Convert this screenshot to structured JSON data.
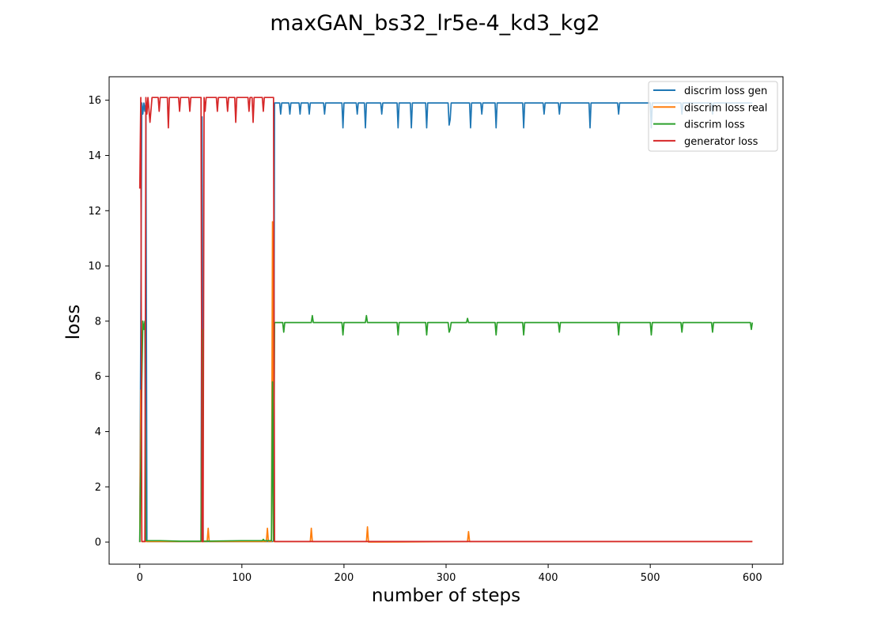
{
  "chart_data": {
    "type": "line",
    "title": "maxGAN_bs32_lr5e-4_kd3_kg2",
    "xlabel": "number of steps",
    "ylabel": "loss",
    "xlim": [
      -30,
      630
    ],
    "ylim": [
      -0.8,
      16.85
    ],
    "xticks": [
      0,
      100,
      200,
      300,
      400,
      500,
      600
    ],
    "yticks": [
      0,
      2,
      4,
      6,
      8,
      10,
      12,
      14,
      16
    ],
    "grid": false,
    "legend_position": "top-right",
    "series": [
      {
        "name": "discrim loss gen",
        "color": "#1f77b4",
        "points": [
          [
            0,
            0.0
          ],
          [
            2,
            15.9
          ],
          [
            3,
            15.5
          ],
          [
            4,
            15.9
          ],
          [
            5,
            15.6
          ],
          [
            6,
            15.9
          ],
          [
            7,
            0.02
          ],
          [
            60,
            0.02
          ],
          [
            61,
            15.4
          ],
          [
            62,
            0.02
          ],
          [
            130,
            0.02
          ],
          [
            131,
            0.03
          ],
          [
            132,
            15.9
          ],
          [
            137,
            15.9
          ],
          [
            138,
            15.5
          ],
          [
            139,
            15.9
          ],
          [
            146,
            15.9
          ],
          [
            147,
            15.5
          ],
          [
            148,
            15.9
          ],
          [
            156,
            15.9
          ],
          [
            157,
            15.5
          ],
          [
            158,
            15.9
          ],
          [
            165,
            15.9
          ],
          [
            166,
            15.5
          ],
          [
            167,
            15.9
          ],
          [
            180,
            15.9
          ],
          [
            181,
            15.5
          ],
          [
            182,
            15.9
          ],
          [
            198,
            15.9
          ],
          [
            199,
            15.0
          ],
          [
            200,
            15.9
          ],
          [
            212,
            15.9
          ],
          [
            213,
            15.5
          ],
          [
            214,
            15.9
          ],
          [
            220,
            15.9
          ],
          [
            221,
            15.0
          ],
          [
            222,
            15.9
          ],
          [
            236,
            15.9
          ],
          [
            237,
            15.5
          ],
          [
            238,
            15.9
          ],
          [
            252,
            15.9
          ],
          [
            253,
            15.0
          ],
          [
            254,
            15.9
          ],
          [
            265,
            15.9
          ],
          [
            266,
            15.0
          ],
          [
            267,
            15.9
          ],
          [
            280,
            15.9
          ],
          [
            281,
            15.0
          ],
          [
            282,
            15.9
          ],
          [
            302,
            15.9
          ],
          [
            303,
            15.1
          ],
          [
            304,
            15.3
          ],
          [
            305,
            15.9
          ],
          [
            323,
            15.9
          ],
          [
            324,
            15.0
          ],
          [
            325,
            15.9
          ],
          [
            334,
            15.9
          ],
          [
            335,
            15.5
          ],
          [
            336,
            15.9
          ],
          [
            348,
            15.9
          ],
          [
            349,
            15.0
          ],
          [
            350,
            15.9
          ],
          [
            375,
            15.9
          ],
          [
            376,
            15.0
          ],
          [
            377,
            15.9
          ],
          [
            395,
            15.9
          ],
          [
            396,
            15.5
          ],
          [
            397,
            15.9
          ],
          [
            410,
            15.9
          ],
          [
            411,
            15.5
          ],
          [
            412,
            15.9
          ],
          [
            440,
            15.9
          ],
          [
            441,
            15.0
          ],
          [
            442,
            15.9
          ],
          [
            468,
            15.9
          ],
          [
            469,
            15.5
          ],
          [
            470,
            15.9
          ],
          [
            500,
            15.9
          ],
          [
            501,
            15.0
          ],
          [
            502,
            15.9
          ],
          [
            530,
            15.9
          ],
          [
            531,
            15.5
          ],
          [
            532,
            15.9
          ],
          [
            560,
            15.9
          ],
          [
            561,
            15.5
          ],
          [
            562,
            15.9
          ],
          [
            600,
            15.9
          ]
        ]
      },
      {
        "name": "discrim loss real",
        "color": "#ff7f0e",
        "points": [
          [
            0,
            0.0
          ],
          [
            1,
            5.5
          ],
          [
            2,
            0.02
          ],
          [
            20,
            0.02
          ],
          [
            60,
            0.02
          ],
          [
            62,
            0.02
          ],
          [
            66,
            0.02
          ],
          [
            67,
            0.5
          ],
          [
            68,
            0.02
          ],
          [
            124,
            0.02
          ],
          [
            125,
            0.5
          ],
          [
            126,
            0.02
          ],
          [
            129,
            0.02
          ],
          [
            130,
            11.6
          ],
          [
            131,
            0.02
          ],
          [
            167,
            0.02
          ],
          [
            168,
            0.5
          ],
          [
            169,
            0.02
          ],
          [
            222,
            0.02
          ],
          [
            223,
            0.55
          ],
          [
            224,
            0.0
          ],
          [
            321,
            0.02
          ],
          [
            322,
            0.38
          ],
          [
            323,
            0.02
          ],
          [
            600,
            0.02
          ]
        ]
      },
      {
        "name": "discrim loss",
        "color": "#2ca02c",
        "points": [
          [
            0,
            0.0
          ],
          [
            1,
            2.8
          ],
          [
            2,
            5.8
          ],
          [
            3,
            8.0
          ],
          [
            4,
            7.7
          ],
          [
            5,
            8.0
          ],
          [
            6,
            0.05
          ],
          [
            20,
            0.05
          ],
          [
            40,
            0.03
          ],
          [
            60,
            0.03
          ],
          [
            61,
            7.7
          ],
          [
            62,
            0.03
          ],
          [
            100,
            0.05
          ],
          [
            120,
            0.05
          ],
          [
            121,
            0.1
          ],
          [
            122,
            0.05
          ],
          [
            129,
            0.05
          ],
          [
            130,
            5.8
          ],
          [
            131,
            0.05
          ],
          [
            132,
            7.95
          ],
          [
            140,
            7.95
          ],
          [
            141,
            7.6
          ],
          [
            142,
            7.95
          ],
          [
            168,
            7.95
          ],
          [
            169,
            8.2
          ],
          [
            170,
            7.95
          ],
          [
            198,
            7.95
          ],
          [
            199,
            7.5
          ],
          [
            200,
            7.95
          ],
          [
            221,
            7.95
          ],
          [
            222,
            8.2
          ],
          [
            223,
            7.95
          ],
          [
            252,
            7.95
          ],
          [
            253,
            7.5
          ],
          [
            254,
            7.95
          ],
          [
            280,
            7.95
          ],
          [
            281,
            7.5
          ],
          [
            282,
            7.95
          ],
          [
            302,
            7.95
          ],
          [
            303,
            7.6
          ],
          [
            304,
            7.7
          ],
          [
            305,
            7.95
          ],
          [
            320,
            7.95
          ],
          [
            321,
            8.1
          ],
          [
            322,
            7.95
          ],
          [
            348,
            7.95
          ],
          [
            349,
            7.5
          ],
          [
            350,
            7.95
          ],
          [
            375,
            7.95
          ],
          [
            376,
            7.5
          ],
          [
            377,
            7.95
          ],
          [
            410,
            7.95
          ],
          [
            411,
            7.6
          ],
          [
            412,
            7.95
          ],
          [
            468,
            7.95
          ],
          [
            469,
            7.5
          ],
          [
            470,
            7.95
          ],
          [
            500,
            7.95
          ],
          [
            501,
            7.5
          ],
          [
            502,
            7.95
          ],
          [
            530,
            7.95
          ],
          [
            531,
            7.6
          ],
          [
            532,
            7.95
          ],
          [
            560,
            7.95
          ],
          [
            561,
            7.6
          ],
          [
            562,
            7.95
          ],
          [
            598,
            7.95
          ],
          [
            599,
            7.7
          ],
          [
            600,
            7.95
          ]
        ]
      },
      {
        "name": "generator loss",
        "color": "#d62728",
        "points": [
          [
            0,
            12.8
          ],
          [
            1,
            16.1
          ],
          [
            2,
            0.02
          ],
          [
            5,
            0.02
          ],
          [
            6,
            16.1
          ],
          [
            7,
            15.5
          ],
          [
            8,
            16.1
          ],
          [
            10,
            15.2
          ],
          [
            12,
            16.1
          ],
          [
            18,
            16.1
          ],
          [
            19,
            15.6
          ],
          [
            20,
            16.1
          ],
          [
            27,
            16.1
          ],
          [
            28,
            15.0
          ],
          [
            29,
            16.1
          ],
          [
            38,
            16.1
          ],
          [
            39,
            15.6
          ],
          [
            40,
            16.1
          ],
          [
            48,
            16.1
          ],
          [
            49,
            15.6
          ],
          [
            50,
            16.1
          ],
          [
            60,
            16.1
          ],
          [
            61,
            0.02
          ],
          [
            62,
            0.02
          ],
          [
            63,
            16.1
          ],
          [
            64,
            15.6
          ],
          [
            65,
            16.1
          ],
          [
            75,
            16.1
          ],
          [
            76,
            15.6
          ],
          [
            77,
            16.1
          ],
          [
            85,
            16.1
          ],
          [
            86,
            15.6
          ],
          [
            87,
            16.1
          ],
          [
            93,
            16.1
          ],
          [
            94,
            15.2
          ],
          [
            95,
            16.1
          ],
          [
            106,
            16.1
          ],
          [
            107,
            15.6
          ],
          [
            108,
            16.1
          ],
          [
            110,
            16.1
          ],
          [
            111,
            15.2
          ],
          [
            112,
            16.1
          ],
          [
            120,
            16.1
          ],
          [
            121,
            15.6
          ],
          [
            122,
            16.1
          ],
          [
            131,
            16.1
          ],
          [
            132,
            0.02
          ],
          [
            200,
            0.02
          ],
          [
            300,
            0.02
          ],
          [
            400,
            0.02
          ],
          [
            500,
            0.02
          ],
          [
            600,
            0.02
          ]
        ]
      }
    ]
  }
}
